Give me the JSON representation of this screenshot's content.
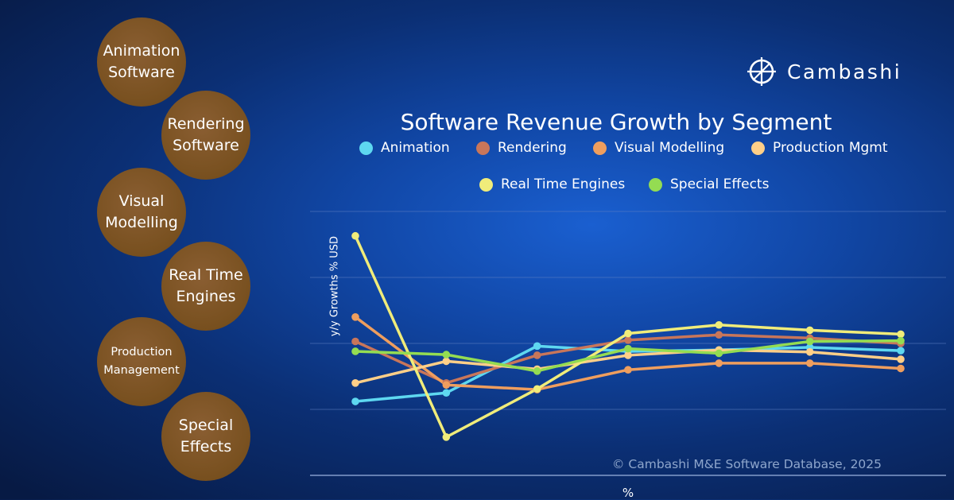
{
  "segments": [
    {
      "label": "Animation Software"
    },
    {
      "label": "Rendering Software"
    },
    {
      "label": "Visual Modelling"
    },
    {
      "label": "Real Time Engines"
    },
    {
      "label": "Production Management"
    },
    {
      "label": "Special Effects"
    }
  ],
  "logo": {
    "text": "Cambashi"
  },
  "copyright": "© Cambashi M&E Software Database, 2025",
  "chart_data": {
    "type": "line",
    "title": "Software Revenue Growth by Segment",
    "xlabel": "%",
    "ylabel": "y/y Growths % USD",
    "grid": true,
    "legend_position": "top",
    "y_tick_labels_shown": false,
    "x_tick_labels_shown": false,
    "x": [
      1,
      2,
      3,
      4,
      5,
      6,
      7
    ],
    "ylim": [
      0,
      4
    ],
    "series": [
      {
        "name": "Animation",
        "color": "#5ed8f0",
        "values": [
          1.12,
          1.25,
          1.96,
          1.88,
          1.9,
          1.94,
          1.89
        ]
      },
      {
        "name": "Rendering",
        "color": "#c8765a",
        "values": [
          2.03,
          1.4,
          1.82,
          2.05,
          2.13,
          2.08,
          2.0
        ]
      },
      {
        "name": "Visual Modelling",
        "color": "#ef9e5e",
        "values": [
          2.4,
          1.37,
          1.3,
          1.6,
          1.7,
          1.7,
          1.62
        ]
      },
      {
        "name": "Production Mgmt",
        "color": "#ffcf88",
        "values": [
          1.4,
          1.73,
          1.61,
          1.82,
          1.9,
          1.87,
          1.76
        ]
      },
      {
        "name": "Real Time Engines",
        "color": "#f0ec7a",
        "values": [
          3.63,
          0.58,
          1.31,
          2.15,
          2.28,
          2.2,
          2.14
        ]
      },
      {
        "name": "Special Effects",
        "color": "#94dc52",
        "values": [
          1.88,
          1.83,
          1.58,
          1.92,
          1.85,
          2.03,
          2.04
        ]
      }
    ]
  }
}
